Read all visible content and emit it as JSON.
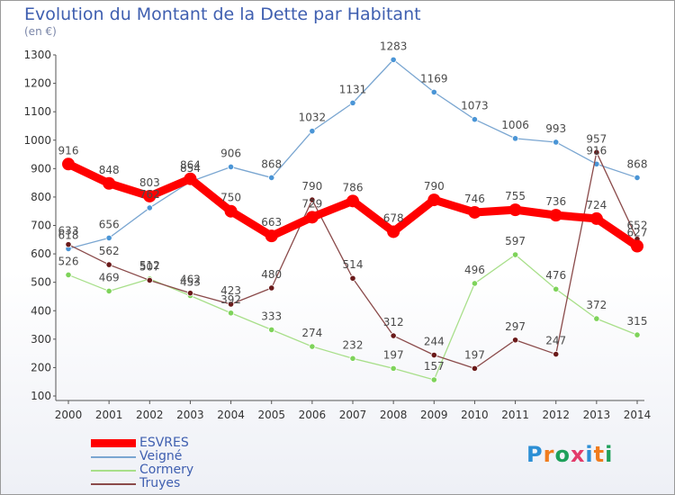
{
  "header": {
    "title": "Evolution du Montant de la Dette par Habitant",
    "unit": "(en €)"
  },
  "logo": {
    "letters": [
      "P",
      "r",
      "o",
      "x",
      "i",
      "t",
      "i"
    ],
    "colors": [
      "#2d8fd5",
      "#f07c1e",
      "#1ea05a",
      "#e23a6a",
      "#2d8fd5",
      "#f07c1e",
      "#1ea05a"
    ]
  },
  "chart_data": {
    "type": "line",
    "title": "Evolution du Montant de la Dette par Habitant",
    "ylabel": "(en €)",
    "xlabel": "",
    "ylim": [
      100,
      1300
    ],
    "yticks": [
      100,
      200,
      300,
      400,
      500,
      600,
      700,
      800,
      900,
      1000,
      1100,
      1200,
      1300
    ],
    "grid": false,
    "legend_position": "bottom-left",
    "categories": [
      "2000",
      "2001",
      "2002",
      "2003",
      "2004",
      "2005",
      "2006",
      "2007",
      "2008",
      "2009",
      "2010",
      "2011",
      "2012",
      "2013",
      "2014"
    ],
    "series": [
      {
        "name": "Veigné",
        "color": "#7aa6d1",
        "marker": "#4a95d6",
        "width": 1.3,
        "values": [
          618,
          656,
          762,
          854,
          906,
          868,
          1032,
          1131,
          1283,
          1169,
          1073,
          1006,
          993,
          916,
          868
        ]
      },
      {
        "name": "Cormery",
        "color": "#a8df8a",
        "marker": "#7ed35a",
        "width": 1.3,
        "values": [
          526,
          469,
          512,
          453,
          392,
          333,
          274,
          232,
          197,
          157,
          496,
          597,
          476,
          372,
          315
        ]
      },
      {
        "name": "Truyes",
        "color": "#8a4a4a",
        "marker": "#6a1a1a",
        "width": 1.3,
        "values": [
          633,
          562,
          507,
          462,
          423,
          480,
          790,
          514,
          312,
          244,
          197,
          297,
          247,
          957,
          652
        ]
      },
      {
        "name": "ESVRES",
        "color": "#ff0000",
        "marker": "#ff0000",
        "width": 9,
        "values": [
          916,
          848,
          803,
          864,
          750,
          663,
          729,
          786,
          678,
          790,
          746,
          755,
          736,
          724,
          627
        ]
      }
    ],
    "legend_order": [
      "ESVRES",
      "Veigné",
      "Cormery",
      "Truyes"
    ]
  }
}
